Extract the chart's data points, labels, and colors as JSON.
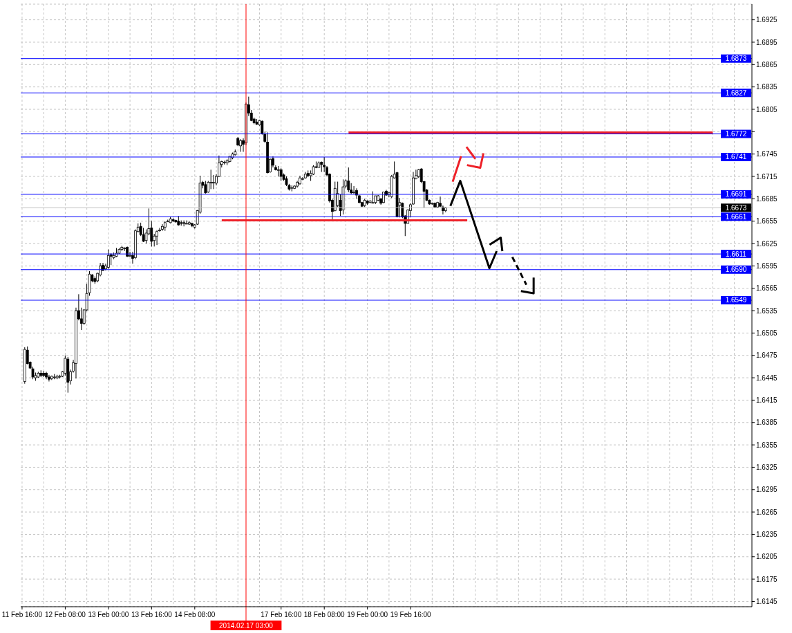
{
  "chart_data": {
    "type": "candlestick",
    "categories": [
      "11 Feb 16:00",
      null,
      null,
      null,
      null,
      null,
      null,
      null,
      null,
      null,
      null,
      null,
      null,
      null,
      null,
      null,
      "12 Feb 08:00",
      null,
      null,
      null,
      null,
      null,
      null,
      null,
      null,
      null,
      null,
      null,
      null,
      null,
      null,
      null,
      "13 Feb 00:00",
      null,
      null,
      null,
      null,
      null,
      null,
      null,
      null,
      null,
      null,
      null,
      null,
      null,
      null,
      null,
      "13 Feb 16:00",
      null,
      null,
      null,
      null,
      null,
      null,
      null,
      null,
      null,
      null,
      null,
      null,
      null,
      null,
      null,
      "14 Feb 08:00",
      null,
      null,
      null,
      null,
      null,
      null,
      null,
      null,
      null,
      null,
      null,
      null,
      null,
      null,
      null,
      null,
      null,
      null,
      "2014.02.17 03:00",
      null,
      null,
      null,
      null,
      null,
      null,
      null,
      null,
      null,
      null,
      null,
      null,
      "17 Feb 16:00",
      null,
      null,
      null,
      null,
      null,
      null,
      null,
      null,
      null,
      null,
      null,
      null,
      null,
      null,
      null,
      "18 Feb 08:00",
      null,
      null,
      null,
      null,
      null,
      null,
      null,
      null,
      null,
      null,
      null,
      null,
      null,
      null,
      null,
      "19 Feb 00:00",
      null,
      null,
      null,
      null,
      null,
      null,
      null,
      null,
      null,
      null,
      null,
      null,
      null,
      null,
      null,
      "19 Feb 16:00",
      null,
      null,
      null,
      null,
      null,
      null,
      null,
      null,
      null,
      null,
      null,
      null,
      null,
      null,
      null,
      null,
      null,
      null,
      null,
      null,
      null,
      null,
      null,
      null,
      null,
      null,
      null,
      null,
      null,
      null,
      null,
      null,
      null,
      null,
      null,
      null,
      null,
      null,
      null,
      null,
      null,
      null,
      null,
      null,
      null,
      null,
      null,
      null,
      null,
      null,
      null,
      null,
      null,
      null,
      null,
      null,
      null,
      null,
      null,
      null,
      null,
      null,
      null,
      null,
      null,
      null,
      null,
      null,
      null,
      null,
      null,
      null,
      null,
      null,
      null,
      null,
      null,
      null,
      null,
      null,
      null,
      null,
      null,
      null,
      null,
      null,
      null,
      null,
      null,
      null,
      null,
      null,
      null,
      null,
      null,
      null,
      null,
      null,
      null,
      null,
      null,
      null,
      null,
      null,
      null,
      null,
      null,
      null,
      null,
      null,
      null,
      null,
      null,
      null,
      null,
      null,
      null,
      null,
      null,
      null,
      null,
      null,
      null,
      null,
      null,
      null
    ],
    "ohlc": [
      null,
      [
        1.644,
        1.6486,
        1.6437,
        1.6483
      ],
      [
        1.6482,
        1.6487,
        1.6463,
        1.6464
      ],
      [
        1.6466,
        1.6467,
        1.6457,
        1.6458
      ],
      [
        1.6457,
        1.646,
        1.6443,
        1.6446
      ],
      [
        1.6445,
        1.6452,
        1.6441,
        1.6448
      ],
      [
        1.6446,
        1.6453,
        1.6445,
        1.6451
      ],
      [
        1.6451,
        1.6455,
        1.6446,
        1.6448
      ],
      [
        1.6451,
        1.6454,
        1.6446,
        1.6448
      ],
      [
        1.6451,
        1.6453,
        1.6443,
        1.6446
      ],
      [
        1.6446,
        1.6449,
        1.644,
        1.6443
      ],
      [
        1.6444,
        1.6448,
        1.6442,
        1.6447
      ],
      [
        1.6446,
        1.645,
        1.6443,
        1.6446
      ],
      [
        1.6445,
        1.6449,
        1.6443,
        1.6447
      ],
      [
        1.6446,
        1.6449,
        1.6444,
        1.6447
      ],
      [
        1.6447,
        1.6454,
        1.6446,
        1.6453
      ],
      [
        1.6451,
        1.6475,
        1.6448,
        1.6471
      ],
      [
        1.647,
        1.6473,
        1.6425,
        1.6439
      ],
      [
        1.6441,
        1.6456,
        1.6436,
        1.6453
      ],
      [
        1.6454,
        1.6469,
        1.6452,
        1.6465
      ],
      [
        1.6464,
        1.6539,
        1.6444,
        1.6535
      ],
      [
        1.6535,
        1.6557,
        1.6522,
        1.6524
      ],
      [
        1.6524,
        1.6539,
        1.6509,
        1.6518
      ],
      [
        1.6518,
        1.6537,
        1.6516,
        1.6536
      ],
      [
        1.6536,
        1.6571,
        1.6534,
        1.6558
      ],
      [
        1.6559,
        1.6588,
        1.6555,
        1.6584
      ],
      [
        1.6583,
        1.6584,
        1.6573,
        1.6575
      ],
      [
        1.6578,
        1.6581,
        1.6571,
        1.6574
      ],
      [
        1.6575,
        1.6586,
        1.6573,
        1.6585
      ],
      [
        1.6583,
        1.6599,
        1.6581,
        1.6595
      ],
      [
        1.6596,
        1.6599,
        1.6588,
        1.6589
      ],
      [
        1.6591,
        1.6598,
        1.6589,
        1.6595
      ],
      [
        1.6593,
        1.6617,
        1.6591,
        1.6609
      ],
      [
        1.661,
        1.6612,
        1.6596,
        1.6608
      ],
      [
        1.6606,
        1.6613,
        1.6604,
        1.6609
      ],
      [
        1.6608,
        1.6619,
        1.6607,
        1.6612
      ],
      [
        1.6612,
        1.6619,
        1.6611,
        1.6617
      ],
      [
        1.6617,
        1.6622,
        1.6615,
        1.662
      ],
      [
        1.6619,
        1.662,
        1.6615,
        1.6619
      ],
      [
        1.662,
        1.6621,
        1.6607,
        1.6608
      ],
      [
        1.6609,
        1.6614,
        1.6607,
        1.6609
      ],
      [
        1.6609,
        1.6614,
        1.6598,
        1.6605
      ],
      [
        1.6606,
        1.6644,
        1.6604,
        1.6642
      ],
      [
        1.6641,
        1.6652,
        1.664,
        1.6647
      ],
      [
        1.6648,
        1.6653,
        1.6635,
        1.6637
      ],
      [
        1.6637,
        1.6646,
        1.6627,
        1.6628
      ],
      [
        1.6629,
        1.6644,
        1.6625,
        1.6639
      ],
      [
        1.6638,
        1.6672,
        1.6636,
        1.6645
      ],
      [
        1.6646,
        1.6655,
        1.6621,
        1.6628
      ],
      [
        1.6629,
        1.6638,
        1.6621,
        1.6635
      ],
      [
        1.6635,
        1.6643,
        1.6623,
        1.6641
      ],
      [
        1.6643,
        1.6646,
        1.6641,
        1.6643
      ],
      [
        1.6644,
        1.6651,
        1.6642,
        1.6648
      ],
      [
        1.6647,
        1.6655,
        1.6642,
        1.6653
      ],
      [
        1.6655,
        1.6657,
        1.6654,
        1.6655
      ],
      [
        1.6653,
        1.6661,
        1.6652,
        1.6658
      ],
      [
        1.6657,
        1.6659,
        1.6654,
        1.6655
      ],
      [
        1.6656,
        1.6657,
        1.6653,
        1.6654
      ],
      [
        1.6655,
        1.6662,
        1.6649,
        1.665
      ],
      [
        1.6653,
        1.6656,
        1.6649,
        1.6652
      ],
      [
        1.6653,
        1.6656,
        1.6648,
        1.6652
      ],
      [
        1.6652,
        1.6656,
        1.6651,
        1.6652
      ],
      [
        1.6651,
        1.6655,
        1.665,
        1.6653
      ],
      [
        1.6652,
        1.6653,
        1.6647,
        1.6649
      ],
      [
        1.6647,
        1.6651,
        1.6645,
        1.665
      ],
      [
        1.6651,
        1.667,
        1.665,
        1.6669
      ],
      [
        1.6667,
        1.6716,
        1.6665,
        1.6706
      ],
      [
        1.6707,
        1.6709,
        1.6699,
        1.6703
      ],
      [
        1.6704,
        1.6709,
        1.6692,
        1.6693
      ],
      [
        1.6694,
        1.6709,
        1.6693,
        1.6707
      ],
      [
        1.6707,
        1.6724,
        1.6698,
        1.6707
      ],
      [
        1.6707,
        1.6717,
        1.6698,
        1.6707
      ],
      [
        1.6706,
        1.6718,
        1.6703,
        1.6715
      ],
      [
        1.6715,
        1.6743,
        1.6714,
        1.6733
      ],
      [
        1.6731,
        1.6736,
        1.6727,
        1.6735
      ],
      [
        1.6734,
        1.6736,
        1.6731,
        1.6734
      ],
      [
        1.6733,
        1.6738,
        1.673,
        1.6736
      ],
      [
        1.6735,
        1.6742,
        1.6734,
        1.6742
      ],
      [
        1.674,
        1.6747,
        1.6738,
        1.6745
      ],
      [
        1.6744,
        1.6751,
        1.6743,
        1.6748
      ],
      [
        1.6766,
        1.6768,
        1.6756,
        1.6757
      ],
      [
        1.6756,
        1.6765,
        1.6748,
        1.6763
      ],
      [
        1.6763,
        1.6766,
        1.6748,
        1.6758
      ],
      [
        1.676,
        1.6814,
        1.6757,
        1.6812
      ],
      [
        1.6811,
        1.6822,
        1.6796,
        1.68
      ],
      [
        1.68,
        1.6804,
        1.6789,
        1.679
      ],
      [
        1.6792,
        1.6794,
        1.6785,
        1.6787
      ],
      [
        1.6788,
        1.6792,
        1.6784,
        1.6785
      ],
      [
        1.6784,
        1.6791,
        1.6783,
        1.679
      ],
      [
        1.6789,
        1.679,
        1.6771,
        1.6772
      ],
      [
        1.6772,
        1.6775,
        1.676,
        1.6762
      ],
      [
        1.6761,
        1.6774,
        1.6719,
        1.672
      ],
      [
        1.6721,
        1.6739,
        1.672,
        1.6738
      ],
      [
        1.6739,
        1.6742,
        1.6727,
        1.673
      ],
      [
        1.6727,
        1.673,
        1.6723,
        1.6724
      ],
      [
        1.6724,
        1.6729,
        1.6715,
        1.6724
      ],
      [
        1.6724,
        1.6726,
        1.6709,
        1.6715
      ],
      [
        1.6717,
        1.6719,
        1.6709,
        1.6711
      ],
      [
        1.6712,
        1.6715,
        1.6702,
        1.6704
      ],
      [
        1.6703,
        1.6705,
        1.6696,
        1.6698
      ],
      [
        1.67,
        1.6703,
        1.6695,
        1.67
      ],
      [
        1.6699,
        1.6703,
        1.6698,
        1.6702
      ],
      [
        1.6702,
        1.6709,
        1.67,
        1.6707
      ],
      [
        1.6705,
        1.6716,
        1.6704,
        1.6713
      ],
      [
        1.6712,
        1.6714,
        1.671,
        1.6712
      ],
      [
        1.6713,
        1.6721,
        1.6712,
        1.6718
      ],
      [
        1.6719,
        1.6723,
        1.6714,
        1.6716
      ],
      [
        1.6716,
        1.6723,
        1.6709,
        1.6719
      ],
      [
        1.6718,
        1.673,
        1.6717,
        1.6728
      ],
      [
        1.6728,
        1.6735,
        1.6726,
        1.6727
      ],
      [
        1.6727,
        1.6735,
        1.6727,
        1.6733
      ],
      [
        1.6734,
        1.6735,
        1.6721,
        1.6731
      ],
      [
        1.673,
        1.6741,
        1.6721,
        1.6728
      ],
      [
        1.6727,
        1.6729,
        1.6715,
        1.6717
      ],
      [
        1.6718,
        1.6719,
        1.668,
        1.6682
      ],
      [
        1.6683,
        1.6685,
        1.6655,
        1.6668
      ],
      [
        1.6669,
        1.6708,
        1.6668,
        1.6699
      ],
      [
        1.6676,
        1.6708,
        1.6674,
        1.6692
      ],
      [
        1.6683,
        1.6691,
        1.6662,
        1.6669
      ],
      [
        1.667,
        1.6711,
        1.6664,
        1.6701
      ],
      [
        1.6702,
        1.6711,
        1.6699,
        1.6709
      ],
      [
        1.6709,
        1.6727,
        1.6694,
        1.6697
      ],
      [
        1.6697,
        1.6706,
        1.6691,
        1.6693
      ],
      [
        1.6694,
        1.6702,
        1.6691,
        1.6694
      ],
      [
        1.6696,
        1.6699,
        1.6685,
        1.669
      ],
      [
        1.6689,
        1.669,
        1.6679,
        1.668
      ],
      [
        1.668,
        1.6681,
        1.6674,
        1.6675
      ],
      [
        1.6676,
        1.6685,
        1.6674,
        1.6683
      ],
      [
        1.6682,
        1.6683,
        1.6677,
        1.6679
      ],
      [
        1.668,
        1.6683,
        1.6679,
        1.6682
      ],
      [
        1.668,
        1.6695,
        1.6679,
        1.668
      ],
      [
        1.668,
        1.6689,
        1.6678,
        1.6689
      ],
      [
        1.6683,
        1.669,
        1.6682,
        1.6689
      ],
      [
        1.6685,
        1.6686,
        1.6677,
        1.6679
      ],
      [
        1.668,
        1.6694,
        1.6679,
        1.6694
      ],
      [
        1.6695,
        1.6697,
        1.6689,
        1.669
      ],
      [
        1.6691,
        1.6694,
        1.6687,
        1.6693
      ],
      [
        1.6688,
        1.6717,
        1.6686,
        1.6715
      ],
      [
        1.6713,
        1.6735,
        1.6712,
        1.6718
      ],
      [
        1.672,
        1.6721,
        1.666,
        1.6661
      ],
      [
        1.6676,
        1.6686,
        1.666,
        1.668
      ],
      [
        1.6679,
        1.668,
        1.6659,
        1.6661
      ],
      [
        1.6662,
        1.6663,
        1.6635,
        1.6652
      ],
      [
        1.6652,
        1.6671,
        1.6652,
        1.667
      ],
      [
        1.6669,
        1.6679,
        1.6661,
        1.6677
      ],
      [
        1.6678,
        1.6721,
        1.6677,
        1.6713
      ],
      [
        1.6712,
        1.6724,
        1.6711,
        1.6716
      ],
      [
        1.6715,
        1.6725,
        1.6713,
        1.6724
      ],
      [
        1.6725,
        1.6726,
        1.6706,
        1.6708
      ],
      [
        1.6708,
        1.6709,
        1.6673,
        1.6695
      ],
      [
        1.6697,
        1.6698,
        1.6682,
        1.6683
      ],
      [
        1.6683,
        1.6684,
        1.6677,
        1.6678
      ],
      [
        1.6679,
        1.668,
        1.6677,
        1.6679
      ],
      [
        1.6679,
        1.668,
        1.6673,
        1.6674
      ],
      [
        1.6674,
        1.6681,
        1.6673,
        1.668
      ],
      [
        1.6679,
        1.6688,
        1.6674,
        1.6675
      ],
      [
        1.6674,
        1.6676,
        1.6664,
        1.6669
      ],
      [
        1.6669,
        1.6674,
        1.6667,
        1.6673
      ],
      null,
      null,
      null,
      null,
      null,
      null,
      null,
      null,
      null,
      null,
      null,
      null,
      null,
      null,
      null,
      null,
      null,
      null,
      null,
      null,
      null,
      null,
      null,
      null,
      null,
      null,
      null,
      null,
      null,
      null,
      null,
      null,
      null,
      null,
      null,
      null,
      null,
      null,
      null,
      null,
      null,
      null,
      null,
      null,
      null,
      null,
      null,
      null,
      null,
      null,
      null,
      null,
      null,
      null,
      null,
      null,
      null,
      null,
      null,
      null,
      null,
      null,
      null,
      null,
      null,
      null,
      null,
      null,
      null,
      null,
      null,
      null,
      null,
      null,
      null,
      null,
      null,
      null,
      null,
      null,
      null,
      null,
      null,
      null,
      null,
      null,
      null,
      null,
      null,
      null,
      null,
      null,
      null,
      null,
      null,
      null,
      null,
      null,
      null,
      null,
      null,
      null,
      null,
      null,
      null,
      null,
      null,
      null,
      null,
      null,
      null,
      null,
      null
    ],
    "color": "#000000",
    "ylim": [
      1.6138,
      1.6946
    ],
    "yticks": [
      1.6145,
      1.6175,
      1.6205,
      1.6235,
      1.6265,
      1.6295,
      1.6325,
      1.6355,
      1.6385,
      1.6415,
      1.6445,
      1.6475,
      1.6505,
      1.6535,
      1.6565,
      1.6595,
      1.6625,
      1.6655,
      1.6685,
      1.6715,
      1.6745,
      {
        "value": 1.6775,
        "label": null
      },
      1.6805,
      1.6835,
      1.6865,
      1.6895,
      1.6925
    ],
    "grid": true,
    "ref_lines": [
      {
        "axis": "y",
        "value": 1.6873,
        "label": "1.6873",
        "color": "#0000ff"
      },
      {
        "axis": "y",
        "value": 1.6827,
        "label": "1.6827",
        "color": "#0000ff"
      },
      {
        "axis": "y",
        "value": 1.6772,
        "label": "1.6772",
        "color": "#0000ff"
      },
      {
        "axis": "y",
        "value": 1.6741,
        "label": "1.6741",
        "color": "#0000ff"
      },
      {
        "axis": "y",
        "value": 1.6691,
        "label": "1.6691",
        "color": "#0000ff"
      },
      {
        "axis": "y",
        "value": 1.6673,
        "label": "1.6673",
        "color": "#c0c0c0"
      },
      {
        "axis": "y",
        "value": 1.6661,
        "label": "1.6661",
        "color": "#0000ff"
      },
      {
        "axis": "y",
        "value": 1.6611,
        "label": "1.6611",
        "color": "#0000ff"
      },
      {
        "axis": "y",
        "value": 1.659,
        "label": "1.6590",
        "color": "#0000ff"
      },
      {
        "axis": "y",
        "value": 1.6549,
        "label": "1.6549",
        "color": "#0000ff"
      },
      {
        "axis": "x",
        "value": "2014.02.17 03:00",
        "color": "#ff0000"
      }
    ],
    "series": [
      {
        "type": "line",
        "color": "#ee2028",
        "values": [
          null,
          null,
          null,
          null,
          null,
          null,
          null,
          null,
          null,
          null,
          null,
          null,
          null,
          null,
          null,
          null,
          null,
          null,
          null,
          null,
          null,
          null,
          null,
          null,
          null,
          null,
          null,
          null,
          null,
          null,
          null,
          null,
          null,
          null,
          null,
          null,
          null,
          null,
          null,
          null,
          null,
          null,
          null,
          null,
          null,
          null,
          null,
          null,
          null,
          null,
          null,
          null,
          null,
          null,
          null,
          null,
          null,
          null,
          null,
          null,
          null,
          null,
          null,
          null,
          null,
          null,
          null,
          null,
          null,
          null,
          null,
          null,
          null,
          null,
          null,
          null,
          null,
          null,
          null,
          null,
          null,
          null,
          null,
          null,
          null,
          null,
          null,
          null,
          null,
          null,
          null,
          null,
          null,
          null,
          null,
          null,
          null,
          null,
          null,
          null,
          null,
          null,
          null,
          null,
          null,
          null,
          null,
          null,
          null,
          null,
          null,
          null,
          null,
          null,
          null,
          null,
          null,
          null,
          null,
          null,
          null,
          1.6774,
          1.6774,
          1.6774,
          1.6774,
          1.6774,
          1.6774,
          1.6774,
          1.6774,
          1.6774,
          1.6774,
          1.6774,
          1.6774,
          1.6774,
          1.6774,
          1.6774,
          1.6774,
          1.6774,
          1.6774,
          1.6774,
          1.6774,
          1.6774,
          1.6774,
          1.6774,
          1.6774,
          1.6774,
          1.6774,
          1.6774,
          1.6774,
          1.6774,
          1.6774,
          1.6774,
          1.6774,
          1.6774,
          1.6774,
          1.6774,
          1.6774,
          1.6774,
          1.6774,
          1.6774,
          1.6774,
          1.6774,
          1.6774,
          1.6774,
          1.6774,
          1.6774,
          1.6774,
          1.6774,
          1.6774,
          1.6774,
          1.6774,
          1.6774,
          1.6774,
          1.6774,
          1.6774,
          1.6774,
          1.6774,
          1.6774,
          1.6774,
          1.6774,
          1.6774,
          1.6774,
          1.6774,
          1.6774,
          1.6774,
          1.6774,
          1.6774,
          1.6774,
          1.6774,
          1.6774,
          1.6774,
          1.6774,
          1.6774,
          1.6774,
          1.6774,
          1.6774,
          1.6774,
          1.6774,
          1.6774,
          1.6774,
          1.6774,
          1.6774,
          1.6774,
          1.6774,
          1.6774,
          1.6774,
          1.6774,
          1.6774,
          1.6774,
          1.6774,
          1.6774,
          1.6774,
          1.6774,
          1.6774,
          1.6774,
          1.6774,
          1.6774,
          1.6774,
          1.6774,
          1.6774,
          1.6774,
          1.6774,
          1.6774,
          1.6774,
          1.6774,
          1.6774,
          1.6774,
          1.6774,
          1.6774,
          1.6774,
          1.6774,
          1.6774,
          1.6774,
          1.6774,
          1.6774,
          1.6774,
          1.6774,
          1.6774,
          1.6774,
          1.6774,
          1.6774,
          1.6774,
          1.6774,
          1.6774,
          1.6774,
          1.6774,
          1.6774,
          1.6774,
          1.6774,
          1.6774,
          1.6774,
          1.6774,
          1.6774,
          1.6774,
          1.6774,
          1.6774,
          1.6774,
          null,
          null,
          null,
          null,
          null,
          null,
          null,
          null,
          null,
          null,
          null,
          null,
          null,
          null
        ]
      },
      {
        "type": "line",
        "color": "#ee2028",
        "values": [
          null,
          null,
          null,
          null,
          null,
          null,
          null,
          null,
          null,
          null,
          null,
          null,
          null,
          null,
          null,
          null,
          null,
          null,
          null,
          null,
          null,
          null,
          null,
          null,
          null,
          null,
          null,
          null,
          null,
          null,
          null,
          null,
          null,
          null,
          null,
          null,
          null,
          null,
          null,
          null,
          null,
          null,
          null,
          null,
          null,
          null,
          null,
          null,
          null,
          null,
          null,
          null,
          null,
          null,
          null,
          null,
          null,
          null,
          null,
          null,
          null,
          null,
          null,
          null,
          null,
          null,
          null,
          null,
          null,
          null,
          null,
          null,
          null,
          null,
          1.6656,
          1.6656,
          1.6656,
          1.6656,
          1.6656,
          1.6656,
          1.6656,
          1.6656,
          1.6656,
          1.6656,
          1.6656,
          1.6656,
          1.6656,
          1.6656,
          1.6656,
          1.6656,
          1.6656,
          1.6656,
          1.6656,
          1.6656,
          1.6656,
          1.6656,
          1.6656,
          1.6656,
          1.6656,
          1.6656,
          1.6656,
          1.6656,
          1.6656,
          1.6656,
          1.6656,
          1.6656,
          1.6656,
          1.6656,
          1.6656,
          1.6656,
          1.6656,
          1.6656,
          1.6656,
          1.6656,
          1.6656,
          1.6656,
          1.6656,
          1.6656,
          1.6656,
          1.6656,
          1.6656,
          1.6656,
          1.6656,
          1.6656,
          1.6656,
          1.6656,
          1.6656,
          1.6656,
          1.6656,
          1.6656,
          1.6656,
          1.6656,
          1.6656,
          1.6656,
          1.6656,
          1.6656,
          1.6656,
          1.6656,
          1.6656,
          1.6656,
          1.6656,
          1.6656,
          1.6656,
          1.6656,
          1.6656,
          1.6656,
          1.6656,
          1.6656,
          1.6656,
          1.6656,
          1.6656,
          1.6656,
          1.6656,
          1.6656,
          1.6656,
          1.6656,
          1.6656,
          1.6656,
          1.6656,
          1.6656,
          1.6656,
          1.6656,
          1.6656,
          1.6656,
          1.6656,
          1.6656,
          null,
          null,
          null,
          null,
          null,
          null,
          null,
          null,
          null,
          null,
          null,
          null,
          null,
          null,
          null,
          null,
          null,
          null,
          null,
          null,
          null,
          null,
          null,
          null,
          null,
          null,
          null,
          null,
          null,
          null,
          null,
          null,
          null,
          null,
          null,
          null,
          null,
          null,
          null,
          null,
          null,
          null,
          null,
          null,
          null,
          null,
          null,
          null,
          null,
          null,
          null,
          null,
          null,
          null,
          null,
          null,
          null,
          null,
          null,
          null,
          null,
          null,
          null,
          null,
          null,
          null,
          null,
          null,
          null,
          null,
          null,
          null,
          null,
          null,
          null,
          null,
          null,
          null,
          null,
          null,
          null,
          null,
          null,
          null,
          null,
          null,
          null,
          null,
          null,
          null,
          null,
          null,
          null,
          null,
          null,
          null,
          null,
          null,
          null,
          null,
          null,
          null,
          null,
          null,
          null
        ]
      }
    ]
  }
}
